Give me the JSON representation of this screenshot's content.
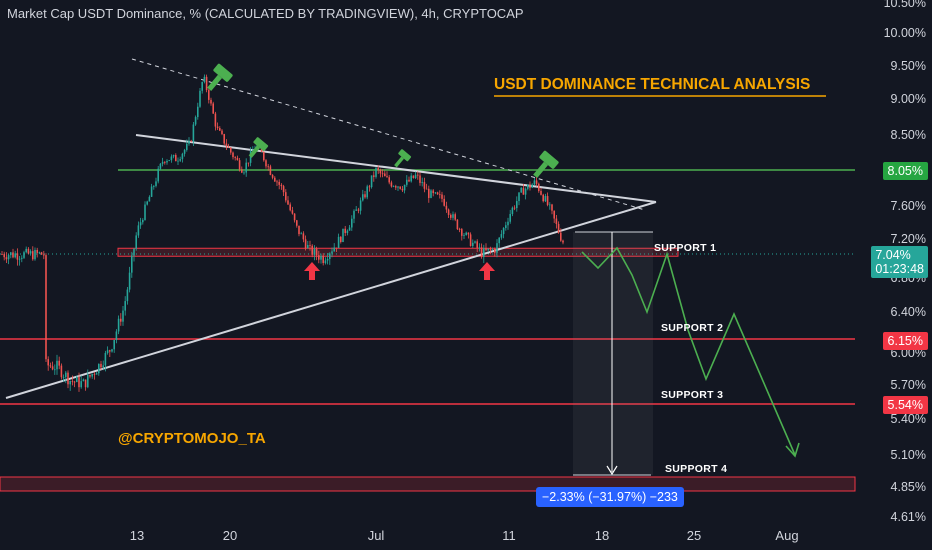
{
  "header": {
    "title": "Market Cap USDT Dominance, % (CALCULATED BY TRADINGVIEW), 4h, CRYPTOCAP"
  },
  "annotations": {
    "title": "USDT DOMINANCE TECHNICAL ANALYSIS",
    "credit": "@CRYPTOMOJO_TA",
    "measure": "−2.33% (−31.97%) −233",
    "support1": "SUPPORT 1",
    "support2": "SUPPORT 2",
    "support3": "SUPPORT 3",
    "support4": "SUPPORT 4"
  },
  "price_axis": {
    "ticks": [
      "10.50%",
      "10.00%",
      "9.50%",
      "9.00%",
      "8.50%",
      "7.60%",
      "7.20%",
      "6.80%",
      "6.40%",
      "6.00%",
      "5.70%",
      "5.40%",
      "5.10%",
      "4.85%",
      "4.61%"
    ],
    "current_price": "7.04%",
    "countdown": "01:23:48",
    "level_tags": [
      {
        "label": "8.05%",
        "color": "#26a641"
      },
      {
        "label": "6.15%",
        "color": "#f23645"
      },
      {
        "label": "5.54%",
        "color": "#f23645"
      }
    ]
  },
  "time_axis": {
    "ticks": [
      "13",
      "20",
      "Jul",
      "11",
      "18",
      "25",
      "Aug"
    ]
  },
  "colors": {
    "up": "#26a69a",
    "down": "#ef5350",
    "resistance": "#4caf50",
    "support": "#f23645",
    "projection": "#4caf50",
    "trend": "#d1d4dc"
  },
  "chart_data": {
    "type": "candlestick",
    "title": "Market Cap USDT Dominance, % (CALCULATED BY TRADINGVIEW), 4h, CRYPTOCAP",
    "timeframe": "4h",
    "x_ticks": [
      "13",
      "20",
      "Jul",
      "11",
      "18",
      "25",
      "Aug"
    ],
    "y_ticks": [
      10.5,
      10.0,
      9.5,
      9.0,
      8.5,
      7.6,
      7.2,
      6.8,
      6.4,
      6.0,
      5.7,
      5.4,
      5.1,
      4.85,
      4.61
    ],
    "ylim": [
      4.61,
      10.6
    ],
    "price_path": [
      [
        "06-06",
        5.9
      ],
      [
        "06-07",
        5.88
      ],
      [
        "06-08",
        5.75
      ],
      [
        "06-09",
        5.72
      ],
      [
        "06-10",
        5.87
      ],
      [
        "06-11",
        6.05
      ],
      [
        "06-12",
        6.45
      ],
      [
        "06-13",
        7.3
      ],
      [
        "06-14",
        7.75
      ],
      [
        "06-15",
        8.2
      ],
      [
        "06-16",
        8.2
      ],
      [
        "06-17",
        8.4
      ],
      [
        "06-18",
        9.35
      ],
      [
        "06-19",
        8.6
      ],
      [
        "06-20",
        8.3
      ],
      [
        "06-21",
        8.05
      ],
      [
        "06-22",
        8.4
      ],
      [
        "06-23",
        8.05
      ],
      [
        "06-24",
        7.8
      ],
      [
        "06-25",
        7.35
      ],
      [
        "06-26",
        7.08
      ],
      [
        "06-27",
        7.0
      ],
      [
        "06-28",
        7.15
      ],
      [
        "06-29",
        7.4
      ],
      [
        "06-30",
        7.7
      ],
      [
        "07-01",
        8.05
      ],
      [
        "07-02",
        7.9
      ],
      [
        "07-03",
        7.85
      ],
      [
        "07-04",
        7.98
      ],
      [
        "07-05",
        7.75
      ],
      [
        "07-06",
        7.7
      ],
      [
        "07-07",
        7.4
      ],
      [
        "07-08",
        7.2
      ],
      [
        "07-09",
        7.05
      ],
      [
        "07-10",
        7.1
      ],
      [
        "07-11",
        7.5
      ],
      [
        "07-12",
        7.8
      ],
      [
        "07-13",
        7.9
      ],
      [
        "07-14",
        7.6
      ],
      [
        "07-15",
        7.2
      ],
      [
        "07-16",
        7.04
      ]
    ],
    "levels": [
      {
        "label": "8.05%",
        "value": 8.05,
        "kind": "resistance"
      },
      {
        "label": "SUPPORT 1",
        "value": 7.04,
        "kind": "support"
      },
      {
        "label": "SUPPORT 2",
        "value": 6.15,
        "kind": "support"
      },
      {
        "label": "SUPPORT 3",
        "value": 5.54,
        "kind": "support"
      },
      {
        "label": "SUPPORT 4",
        "value": 4.85,
        "kind": "support"
      }
    ],
    "projection": [
      [
        "07-16",
        7.04
      ],
      [
        "07-17",
        6.95
      ],
      [
        "07-19",
        7.1
      ],
      [
        "07-20",
        6.95
      ],
      [
        "07-22",
        6.45
      ],
      [
        "07-24",
        7.05
      ],
      [
        "07-26",
        6.3
      ],
      [
        "07-28",
        5.8
      ],
      [
        "07-30",
        6.4
      ],
      [
        "08-04",
        5.1
      ]
    ],
    "measurement": {
      "change": "−2.33%",
      "percent": "−31.97%",
      "bars": "−233"
    }
  }
}
